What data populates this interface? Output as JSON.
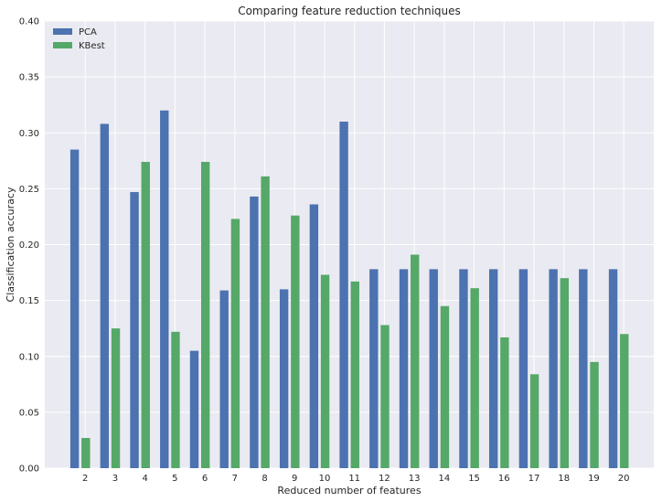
{
  "chart_data": {
    "type": "bar",
    "title": "Comparing feature reduction techniques",
    "xlabel": "Reduced number of features",
    "ylabel": "Classification accuracy",
    "ylim": [
      0,
      0.4
    ],
    "yticks": [
      "0.00",
      "0.05",
      "0.10",
      "0.15",
      "0.20",
      "0.25",
      "0.30",
      "0.35",
      "0.40"
    ],
    "categories": [
      "2",
      "3",
      "4",
      "5",
      "6",
      "7",
      "8",
      "9",
      "10",
      "11",
      "12",
      "13",
      "14",
      "15",
      "16",
      "17",
      "18",
      "19",
      "20"
    ],
    "series": [
      {
        "name": "PCA",
        "color": "#4c72b0",
        "values": [
          0.285,
          0.308,
          0.247,
          0.32,
          0.105,
          0.159,
          0.243,
          0.16,
          0.236,
          0.31,
          0.178,
          0.178,
          0.178,
          0.178,
          0.178,
          0.178,
          0.178,
          0.178,
          0.178
        ]
      },
      {
        "name": "KBest",
        "color": "#55a868",
        "values": [
          0.027,
          0.125,
          0.274,
          0.122,
          0.274,
          0.223,
          0.261,
          0.226,
          0.173,
          0.167,
          0.128,
          0.191,
          0.145,
          0.161,
          0.117,
          0.084,
          0.17,
          0.095,
          0.12
        ]
      }
    ],
    "grid": true,
    "legend_position": "top-left",
    "background": "#eaeaf2"
  }
}
